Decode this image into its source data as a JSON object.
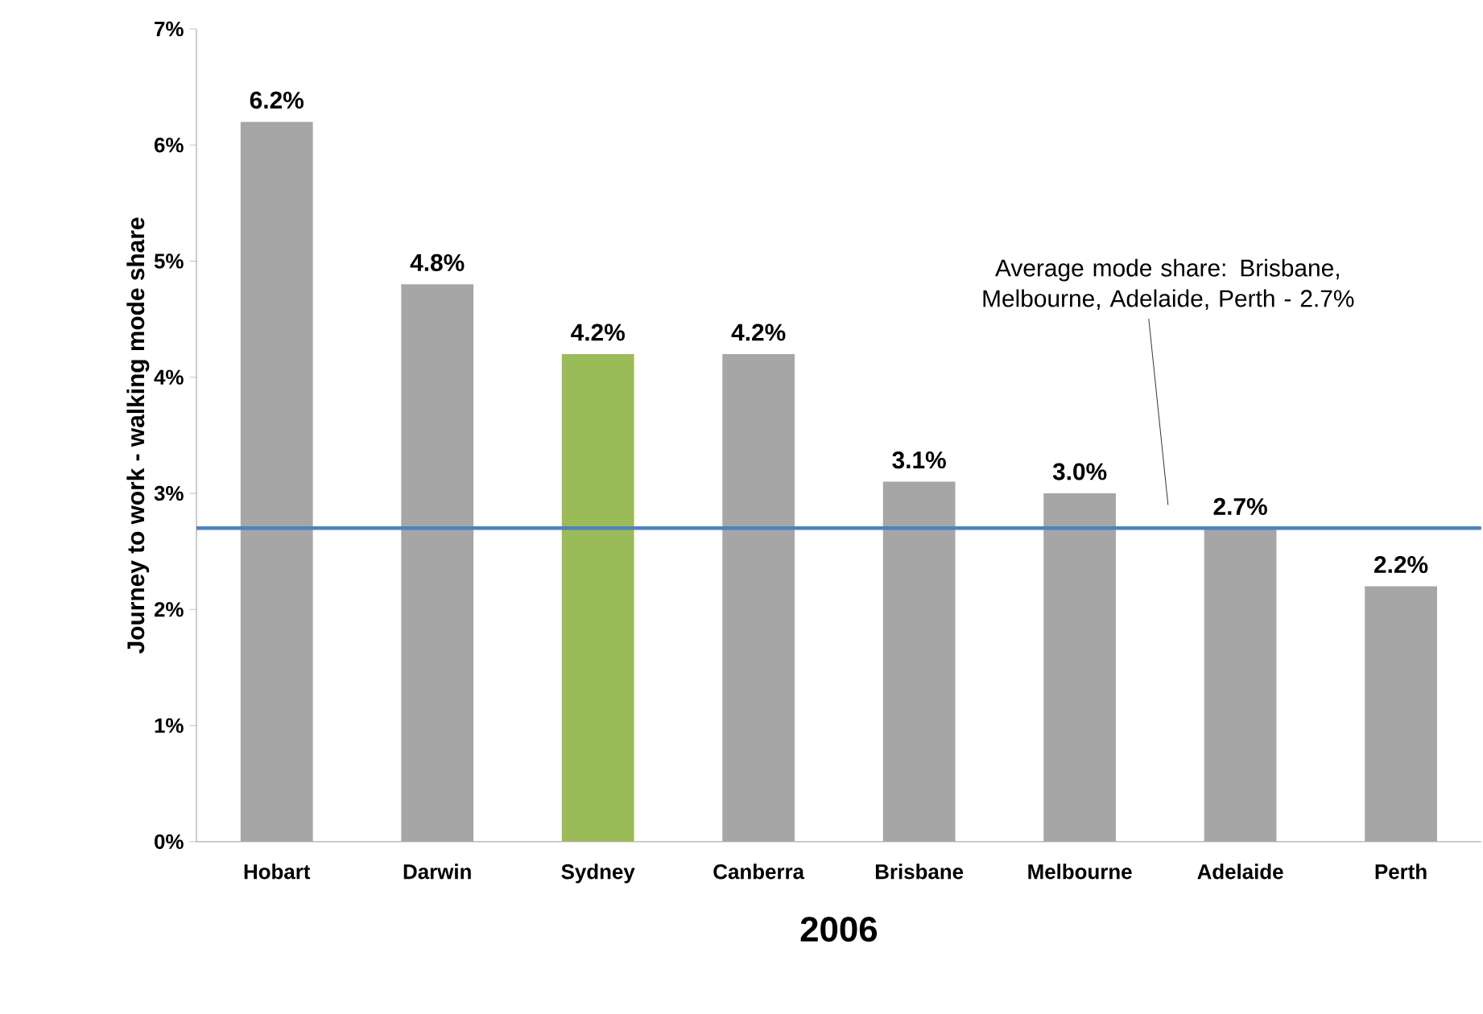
{
  "chart_data": {
    "type": "bar",
    "xlabel": "2006",
    "ylabel": "Journey to work - walking mode share",
    "categories": [
      "Hobart",
      "Darwin",
      "Sydney",
      "Canberra",
      "Brisbane",
      "Melbourne",
      "Adelaide",
      "Perth"
    ],
    "values": [
      6.2,
      4.8,
      4.2,
      4.2,
      3.1,
      3.0,
      2.7,
      2.2
    ],
    "value_labels": [
      "6.2%",
      "4.8%",
      "4.2%",
      "4.2%",
      "3.1%",
      "3.0%",
      "2.7%",
      "2.2%"
    ],
    "colors": [
      "#a6a6a6",
      "#a6a6a6",
      "#9bbb59",
      "#a6a6a6",
      "#a6a6a6",
      "#a6a6a6",
      "#a6a6a6",
      "#a6a6a6"
    ],
    "ylim": [
      0,
      7
    ],
    "yticks": [
      {
        "value": 0,
        "label": "0%"
      },
      {
        "value": 1,
        "label": "1%"
      },
      {
        "value": 2,
        "label": "2%"
      },
      {
        "value": 3,
        "label": "3%"
      },
      {
        "value": 4,
        "label": "4%"
      },
      {
        "value": 5,
        "label": "5%"
      },
      {
        "value": 6,
        "label": "6%"
      },
      {
        "value": 7,
        "label": "7%"
      }
    ],
    "ref_lines": [
      {
        "axis": "y",
        "value": 2.7,
        "color": "#4f81bd"
      }
    ],
    "annotations": [
      "Average mode share:  Brisbane, Melbourne, Adelaide, Perth - 2.7%"
    ],
    "grid": false
  }
}
